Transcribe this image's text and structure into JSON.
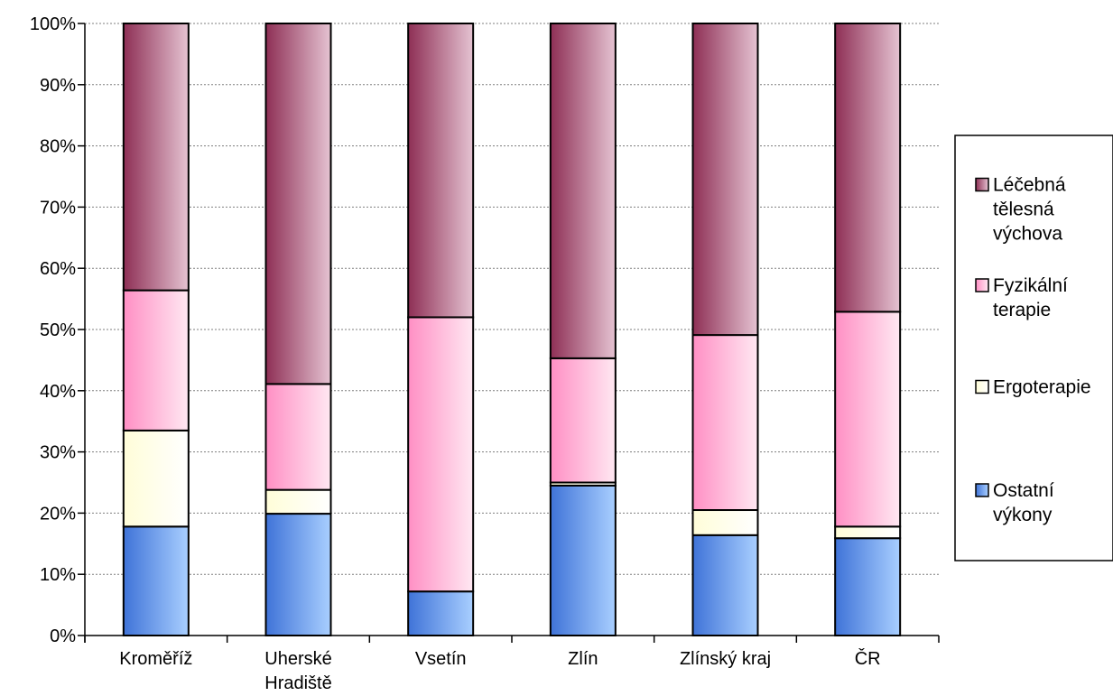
{
  "chart_data": {
    "type": "bar",
    "stacked": "percent",
    "categories": [
      [
        "Kroměříž"
      ],
      [
        "Uherské",
        "Hradiště"
      ],
      [
        "Vsetín"
      ],
      [
        "Zlín"
      ],
      [
        "Zlínský kraj"
      ],
      [
        "ČR"
      ]
    ],
    "series": [
      {
        "name": "Ostatní výkony",
        "legend_lines": [
          "Ostatní",
          "výkony"
        ],
        "values": [
          17.8,
          19.9,
          7.2,
          24.5,
          16.4,
          15.9
        ],
        "colors": [
          "#3f73d8",
          "#a9cfff"
        ]
      },
      {
        "name": "Ergoterapie",
        "legend_lines": [
          "Ergoterapie"
        ],
        "values": [
          15.7,
          3.9,
          0.0,
          0.5,
          4.1,
          1.9
        ],
        "colors": [
          "#fffdd8",
          "#ffffff"
        ]
      },
      {
        "name": "Fyzikální terapie",
        "legend_lines": [
          "Fyzikální",
          "terapie"
        ],
        "values": [
          22.9,
          17.3,
          44.8,
          20.3,
          28.6,
          35.1
        ],
        "colors": [
          "#ff8fc4",
          "#ffe8f2"
        ]
      },
      {
        "name": "Léčebná tělesná výchova",
        "legend_lines": [
          "Léčebná",
          "tělesná",
          "výchova"
        ],
        "values": [
          43.6,
          58.9,
          48.0,
          54.7,
          50.9,
          47.1
        ],
        "colors": [
          "#8e2f55",
          "#e5c3d2"
        ]
      }
    ],
    "y_ticks": [
      "0%",
      "10%",
      "20%",
      "30%",
      "40%",
      "50%",
      "60%",
      "70%",
      "80%",
      "90%",
      "100%"
    ],
    "ylim": [
      0,
      100
    ],
    "grid": true,
    "legend_position": "right"
  }
}
